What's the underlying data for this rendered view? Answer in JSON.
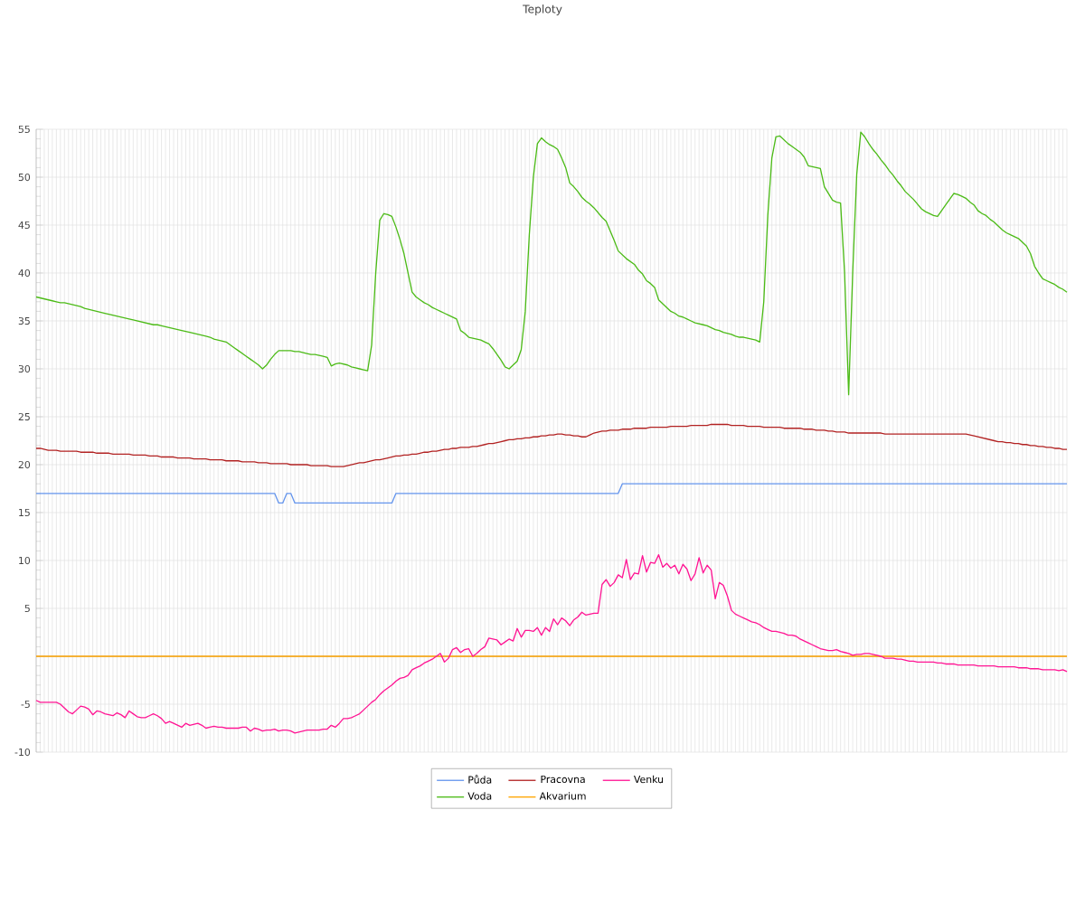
{
  "chart_data": {
    "type": "line",
    "title": "Teploty",
    "categories": [
      null,
      null,
      null,
      null,
      null,
      null,
      null,
      null,
      null,
      null,
      null,
      null,
      null,
      null,
      null,
      null,
      null,
      null,
      null,
      null,
      null,
      null,
      null,
      null,
      null,
      null,
      null,
      null,
      null,
      null,
      null,
      null,
      null,
      null,
      null,
      null,
      null,
      null,
      null,
      null,
      null,
      null,
      null,
      null,
      null,
      null,
      null,
      null,
      null,
      null,
      null,
      null,
      null,
      null,
      null,
      null,
      null,
      null,
      null,
      null,
      null,
      null,
      null,
      null,
      null,
      null,
      null,
      null,
      null,
      null,
      null,
      null,
      null,
      null,
      null,
      null,
      null,
      null,
      null,
      null,
      null,
      null,
      null,
      null,
      null,
      null,
      null,
      null,
      null,
      null,
      null,
      null,
      null,
      null,
      null,
      null,
      null,
      null,
      null,
      null,
      null,
      null,
      null,
      null,
      null,
      null,
      null,
      null,
      null,
      null,
      null,
      null,
      null,
      null,
      null,
      null,
      null,
      null,
      null,
      null,
      null,
      null,
      null,
      null,
      null,
      null,
      null,
      null,
      null,
      null,
      null,
      null,
      null,
      null,
      null,
      null,
      null,
      null,
      null,
      null,
      null,
      null,
      null,
      null,
      null,
      null,
      null,
      null,
      null,
      null,
      null,
      null,
      null,
      null,
      null,
      null,
      null,
      null,
      null,
      null,
      null,
      null,
      null,
      null,
      null,
      null,
      null,
      null,
      null,
      null,
      null,
      null,
      null,
      null,
      null,
      null,
      null,
      null,
      null,
      null,
      null,
      null,
      null,
      null,
      null,
      null,
      null,
      null,
      null,
      null,
      null,
      null,
      null,
      null,
      null,
      null,
      null,
      null,
      null,
      null,
      null,
      null,
      null,
      null,
      null,
      null,
      null,
      null,
      null,
      null,
      null,
      null,
      null,
      null,
      null,
      null,
      null,
      null,
      null,
      null,
      null,
      null,
      null,
      null,
      null,
      null,
      null,
      null,
      null,
      null,
      null,
      null,
      null,
      null,
      null,
      null,
      null,
      null,
      null,
      null,
      null,
      null,
      null,
      null,
      null,
      null,
      null,
      null,
      null,
      null,
      null,
      null,
      null,
      null,
      null,
      null
    ],
    "ylim": [
      -10,
      55
    ],
    "yticks": [
      -10,
      -5,
      {
        "value": 0,
        "label": null
      },
      5,
      10,
      15,
      20,
      25,
      30,
      35,
      40,
      45,
      50,
      55
    ],
    "grid": true,
    "legend": "bottom",
    "marker": "none",
    "line_style": "solid",
    "series": [
      {
        "name": "Půda",
        "color": "#6495ed",
        "values": [
          17,
          17,
          17,
          17,
          17,
          17,
          17,
          17,
          17,
          17,
          17,
          17,
          17,
          17,
          17,
          17,
          17,
          17,
          17,
          17,
          17,
          17,
          17,
          17,
          17,
          17,
          17,
          17,
          17,
          17,
          17,
          17,
          17,
          17,
          17,
          17,
          17,
          17,
          17,
          17,
          17,
          17,
          17,
          17,
          17,
          17,
          17,
          17,
          17,
          17,
          17,
          17,
          17,
          17,
          17,
          17,
          17,
          17,
          17,
          17,
          16,
          16,
          17,
          17,
          16,
          16,
          16,
          16,
          16,
          16,
          16,
          16,
          16,
          16,
          16,
          16,
          16,
          16,
          16,
          16,
          16,
          16,
          16,
          16,
          16,
          16,
          16,
          16,
          16,
          17,
          17,
          17,
          17,
          17,
          17,
          17,
          17,
          17,
          17,
          17,
          17,
          17,
          17,
          17,
          17,
          17,
          17,
          17,
          17,
          17,
          17,
          17,
          17,
          17,
          17,
          17,
          17,
          17,
          17,
          17,
          17,
          17,
          17,
          17,
          17,
          17,
          17,
          17,
          17,
          17,
          17,
          17,
          17,
          17,
          17,
          17,
          17,
          17,
          17,
          17,
          17,
          17,
          17,
          17,
          17,
          18,
          18,
          18,
          18,
          18,
          18,
          18,
          18,
          18,
          18,
          18,
          18,
          18,
          18,
          18,
          18,
          18,
          18,
          18,
          18,
          18,
          18,
          18,
          18,
          18,
          18,
          18,
          18,
          18,
          18,
          18,
          18,
          18,
          18,
          18,
          18,
          18,
          18,
          18,
          18,
          18,
          18,
          18,
          18,
          18,
          18,
          18,
          18,
          18,
          18,
          18,
          18,
          18,
          18,
          18,
          18,
          18,
          18,
          18,
          18,
          18,
          18,
          18,
          18,
          18,
          18,
          18,
          18,
          18,
          18,
          18,
          18,
          18,
          18,
          18,
          18,
          18,
          18,
          18,
          18,
          18,
          18,
          18,
          18,
          18,
          18,
          18,
          18,
          18,
          18,
          18,
          18,
          18,
          18,
          18,
          18,
          18,
          18,
          18,
          18,
          18,
          18,
          18,
          18,
          18,
          18,
          18,
          18,
          18,
          18,
          18
        ]
      },
      {
        "name": "Voda",
        "color": "#4cbb17",
        "values": [
          37.5,
          37.4,
          37.3,
          37.2,
          37.1,
          37.0,
          36.9,
          36.9,
          36.8,
          36.7,
          36.6,
          36.5,
          36.3,
          36.2,
          36.1,
          36.0,
          35.9,
          35.8,
          35.7,
          35.6,
          35.5,
          35.4,
          35.3,
          35.2,
          35.1,
          35.0,
          34.9,
          34.8,
          34.7,
          34.6,
          34.6,
          34.5,
          34.4,
          34.3,
          34.2,
          34.1,
          34.0,
          33.9,
          33.8,
          33.7,
          33.6,
          33.5,
          33.4,
          33.3,
          33.1,
          33.0,
          32.9,
          32.8,
          32.5,
          32.2,
          31.9,
          31.6,
          31.3,
          31.0,
          30.7,
          30.4,
          30.0,
          30.4,
          31.0,
          31.5,
          31.9,
          31.9,
          31.9,
          31.9,
          31.8,
          31.8,
          31.7,
          31.6,
          31.5,
          31.5,
          31.4,
          31.3,
          31.2,
          30.3,
          30.5,
          30.6,
          30.5,
          30.4,
          30.2,
          30.1,
          30.0,
          29.9,
          29.8,
          32.5,
          40.0,
          45.5,
          46.2,
          46.1,
          45.9,
          44.8,
          43.5,
          42.0,
          40.0,
          38.0,
          37.5,
          37.2,
          36.9,
          36.7,
          36.4,
          36.2,
          36.0,
          35.8,
          35.6,
          35.4,
          35.2,
          34.0,
          33.7,
          33.3,
          33.2,
          33.1,
          33.0,
          32.8,
          32.6,
          32.1,
          31.5,
          30.9,
          30.2,
          30.0,
          30.4,
          30.8,
          32.0,
          36.0,
          44.0,
          50.0,
          53.5,
          54.1,
          53.7,
          53.4,
          53.2,
          52.9,
          52.0,
          51.0,
          49.4,
          49.0,
          48.5,
          47.9,
          47.5,
          47.2,
          46.8,
          46.3,
          45.8,
          45.4,
          44.4,
          43.4,
          42.3,
          41.9,
          41.5,
          41.2,
          40.9,
          40.3,
          39.9,
          39.2,
          38.9,
          38.5,
          37.2,
          36.8,
          36.4,
          36.0,
          35.8,
          35.5,
          35.4,
          35.2,
          35.0,
          34.8,
          34.7,
          34.6,
          34.5,
          34.3,
          34.1,
          34.0,
          33.8,
          33.7,
          33.6,
          33.4,
          33.3,
          33.3,
          33.2,
          33.1,
          33.0,
          32.8,
          37.0,
          46.0,
          52.0,
          54.2,
          54.3,
          53.9,
          53.5,
          53.2,
          52.9,
          52.6,
          52.1,
          51.2,
          51.1,
          51.0,
          50.9,
          49.0,
          48.3,
          47.6,
          47.4,
          47.3,
          40.0,
          27.3,
          40.0,
          50.3,
          54.7,
          54.2,
          53.5,
          52.9,
          52.4,
          51.8,
          51.3,
          50.7,
          50.2,
          49.6,
          49.1,
          48.5,
          48.1,
          47.7,
          47.2,
          46.7,
          46.4,
          46.2,
          46.0,
          45.9,
          46.5,
          47.1,
          47.7,
          48.3,
          48.2,
          48.0,
          47.8,
          47.4,
          47.1,
          46.5,
          46.2,
          46.0,
          45.6,
          45.3,
          44.9,
          44.5,
          44.2,
          44.0,
          43.8,
          43.6,
          43.2,
          42.8,
          42.0,
          40.7,
          40.0,
          39.4,
          39.2,
          39.0,
          38.8,
          38.5,
          38.3,
          38.0
        ]
      },
      {
        "name": "Pracovna",
        "color": "#b22222",
        "values": [
          21.7,
          21.7,
          21.6,
          21.5,
          21.5,
          21.5,
          21.4,
          21.4,
          21.4,
          21.4,
          21.4,
          21.3,
          21.3,
          21.3,
          21.3,
          21.2,
          21.2,
          21.2,
          21.2,
          21.1,
          21.1,
          21.1,
          21.1,
          21.1,
          21.0,
          21.0,
          21.0,
          21.0,
          20.9,
          20.9,
          20.9,
          20.8,
          20.8,
          20.8,
          20.8,
          20.7,
          20.7,
          20.7,
          20.7,
          20.6,
          20.6,
          20.6,
          20.6,
          20.5,
          20.5,
          20.5,
          20.5,
          20.4,
          20.4,
          20.4,
          20.4,
          20.3,
          20.3,
          20.3,
          20.3,
          20.2,
          20.2,
          20.2,
          20.1,
          20.1,
          20.1,
          20.1,
          20.1,
          20.0,
          20.0,
          20.0,
          20.0,
          20.0,
          19.9,
          19.9,
          19.9,
          19.9,
          19.9,
          19.8,
          19.8,
          19.8,
          19.8,
          19.9,
          20.0,
          20.1,
          20.2,
          20.2,
          20.3,
          20.4,
          20.5,
          20.5,
          20.6,
          20.7,
          20.8,
          20.9,
          20.9,
          21.0,
          21.0,
          21.1,
          21.1,
          21.2,
          21.3,
          21.3,
          21.4,
          21.4,
          21.5,
          21.6,
          21.6,
          21.7,
          21.7,
          21.8,
          21.8,
          21.8,
          21.9,
          21.9,
          22.0,
          22.1,
          22.2,
          22.2,
          22.3,
          22.4,
          22.5,
          22.6,
          22.6,
          22.7,
          22.7,
          22.8,
          22.8,
          22.9,
          22.9,
          23.0,
          23.0,
          23.1,
          23.1,
          23.2,
          23.2,
          23.1,
          23.1,
          23.0,
          23.0,
          22.9,
          22.9,
          23.1,
          23.3,
          23.4,
          23.5,
          23.5,
          23.6,
          23.6,
          23.6,
          23.7,
          23.7,
          23.7,
          23.8,
          23.8,
          23.8,
          23.8,
          23.9,
          23.9,
          23.9,
          23.9,
          23.9,
          24.0,
          24.0,
          24.0,
          24.0,
          24.0,
          24.1,
          24.1,
          24.1,
          24.1,
          24.1,
          24.2,
          24.2,
          24.2,
          24.2,
          24.2,
          24.1,
          24.1,
          24.1,
          24.1,
          24.0,
          24.0,
          24.0,
          24.0,
          23.9,
          23.9,
          23.9,
          23.9,
          23.9,
          23.8,
          23.8,
          23.8,
          23.8,
          23.8,
          23.7,
          23.7,
          23.7,
          23.6,
          23.6,
          23.6,
          23.5,
          23.5,
          23.4,
          23.4,
          23.4,
          23.3,
          23.3,
          23.3,
          23.3,
          23.3,
          23.3,
          23.3,
          23.3,
          23.3,
          23.2,
          23.2,
          23.2,
          23.2,
          23.2,
          23.2,
          23.2,
          23.2,
          23.2,
          23.2,
          23.2,
          23.2,
          23.2,
          23.2,
          23.2,
          23.2,
          23.2,
          23.2,
          23.2,
          23.2,
          23.2,
          23.1,
          23.0,
          22.9,
          22.8,
          22.7,
          22.6,
          22.5,
          22.4,
          22.4,
          22.3,
          22.3,
          22.2,
          22.2,
          22.1,
          22.1,
          22.0,
          22.0,
          21.9,
          21.9,
          21.8,
          21.8,
          21.7,
          21.7,
          21.6,
          21.6
        ]
      },
      {
        "name": "Akvarium",
        "color": "#ffa500",
        "values": [
          0,
          0,
          0,
          0,
          0,
          0,
          0,
          0,
          0,
          0,
          0,
          0,
          0,
          0,
          0,
          0,
          0,
          0,
          0,
          0,
          0,
          0,
          0,
          0,
          0,
          0,
          0,
          0,
          0,
          0,
          0,
          0,
          0,
          0,
          0,
          0,
          0,
          0,
          0,
          0,
          0,
          0,
          0,
          0,
          0,
          0,
          0,
          0,
          0,
          0,
          0,
          0,
          0,
          0,
          0,
          0,
          0,
          0,
          0,
          0,
          0,
          0,
          0,
          0,
          0,
          0,
          0,
          0,
          0,
          0,
          0,
          0,
          0,
          0,
          0,
          0,
          0,
          0,
          0,
          0,
          0,
          0,
          0,
          0,
          0,
          0,
          0,
          0,
          0,
          0,
          0,
          0,
          0,
          0,
          0,
          0,
          0,
          0,
          0,
          0,
          0,
          0,
          0,
          0,
          0,
          0,
          0,
          0,
          0,
          0,
          0,
          0,
          0,
          0,
          0,
          0,
          0,
          0,
          0,
          0,
          0,
          0,
          0,
          0,
          0,
          0,
          0,
          0,
          0,
          0,
          0,
          0,
          0,
          0,
          0,
          0,
          0,
          0,
          0,
          0,
          0,
          0,
          0,
          0,
          0,
          0,
          0,
          0,
          0,
          0,
          0,
          0,
          0,
          0,
          0,
          0,
          0,
          0,
          0,
          0,
          0,
          0,
          0,
          0,
          0,
          0,
          0,
          0,
          0,
          0,
          0,
          0,
          0,
          0,
          0,
          0,
          0,
          0,
          0,
          0,
          0,
          0,
          0,
          0,
          0,
          0,
          0,
          0,
          0,
          0,
          0,
          0,
          0,
          0,
          0,
          0,
          0,
          0,
          0,
          0,
          0,
          0,
          0,
          0,
          0,
          0,
          0,
          0,
          0,
          0,
          0,
          0,
          0,
          0,
          0,
          0,
          0,
          0,
          0,
          0,
          0,
          0,
          0,
          0,
          0,
          0,
          0,
          0,
          0,
          0,
          0,
          0,
          0,
          0,
          0,
          0,
          0,
          0,
          0,
          0,
          0,
          0,
          0,
          0,
          0,
          0,
          0,
          0,
          0,
          0,
          0,
          0,
          0,
          0,
          0,
          0
        ]
      },
      {
        "name": "Venku",
        "color": "#ff1493",
        "values": [
          -4.6,
          -4.8,
          -4.8,
          -4.8,
          -4.8,
          -4.8,
          -5.0,
          -5.4,
          -5.8,
          -6.0,
          -5.6,
          -5.2,
          -5.3,
          -5.5,
          -6.1,
          -5.7,
          -5.8,
          -6.0,
          -6.1,
          -6.2,
          -5.9,
          -6.1,
          -6.4,
          -5.7,
          -6.0,
          -6.3,
          -6.4,
          -6.4,
          -6.2,
          -6.0,
          -6.2,
          -6.5,
          -7.0,
          -6.8,
          -7.0,
          -7.2,
          -7.4,
          -7.0,
          -7.2,
          -7.1,
          -7.0,
          -7.2,
          -7.5,
          -7.4,
          -7.3,
          -7.4,
          -7.4,
          -7.5,
          -7.5,
          -7.5,
          -7.5,
          -7.4,
          -7.4,
          -7.8,
          -7.5,
          -7.6,
          -7.8,
          -7.7,
          -7.7,
          -7.6,
          -7.8,
          -7.7,
          -7.7,
          -7.8,
          -8.0,
          -7.9,
          -7.8,
          -7.7,
          -7.7,
          -7.7,
          -7.7,
          -7.6,
          -7.6,
          -7.2,
          -7.4,
          -7.0,
          -6.5,
          -6.5,
          -6.4,
          -6.2,
          -6.0,
          -5.6,
          -5.2,
          -4.8,
          -4.5,
          -4.0,
          -3.6,
          -3.3,
          -3.0,
          -2.6,
          -2.3,
          -2.2,
          -2.0,
          -1.4,
          -1.2,
          -1.0,
          -0.7,
          -0.5,
          -0.3,
          0.0,
          0.3,
          -0.6,
          -0.2,
          0.7,
          0.9,
          0.4,
          0.7,
          0.8,
          0.0,
          0.3,
          0.7,
          1.0,
          1.9,
          1.8,
          1.7,
          1.2,
          1.5,
          1.8,
          1.6,
          2.9,
          2.0,
          2.7,
          2.7,
          2.6,
          3.0,
          2.2,
          3.0,
          2.6,
          3.9,
          3.3,
          4.0,
          3.7,
          3.2,
          3.8,
          4.1,
          4.6,
          4.3,
          4.4,
          4.5,
          4.5,
          7.5,
          8.0,
          7.3,
          7.7,
          8.5,
          8.2,
          10.1,
          8.0,
          8.7,
          8.6,
          10.5,
          8.8,
          9.8,
          9.7,
          10.6,
          9.3,
          9.7,
          9.2,
          9.5,
          8.6,
          9.6,
          9.1,
          7.9,
          8.6,
          10.3,
          8.7,
          9.5,
          9.0,
          6.0,
          7.7,
          7.4,
          6.3,
          4.8,
          4.4,
          4.2,
          4.0,
          3.8,
          3.6,
          3.5,
          3.3,
          3.0,
          2.8,
          2.6,
          2.6,
          2.5,
          2.4,
          2.2,
          2.2,
          2.1,
          1.8,
          1.6,
          1.4,
          1.2,
          1.0,
          0.8,
          0.7,
          0.6,
          0.6,
          0.7,
          0.5,
          0.4,
          0.3,
          0.1,
          0.2,
          0.2,
          0.3,
          0.3,
          0.2,
          0.1,
          0.0,
          -0.2,
          -0.2,
          -0.2,
          -0.3,
          -0.3,
          -0.4,
          -0.5,
          -0.5,
          -0.6,
          -0.6,
          -0.6,
          -0.6,
          -0.6,
          -0.7,
          -0.7,
          -0.8,
          -0.8,
          -0.8,
          -0.9,
          -0.9,
          -0.9,
          -0.9,
          -0.9,
          -1.0,
          -1.0,
          -1.0,
          -1.0,
          -1.0,
          -1.1,
          -1.1,
          -1.1,
          -1.1,
          -1.1,
          -1.2,
          -1.2,
          -1.2,
          -1.3,
          -1.3,
          -1.3,
          -1.4,
          -1.4,
          -1.4,
          -1.4,
          -1.5,
          -1.4,
          -1.6
        ]
      }
    ]
  }
}
